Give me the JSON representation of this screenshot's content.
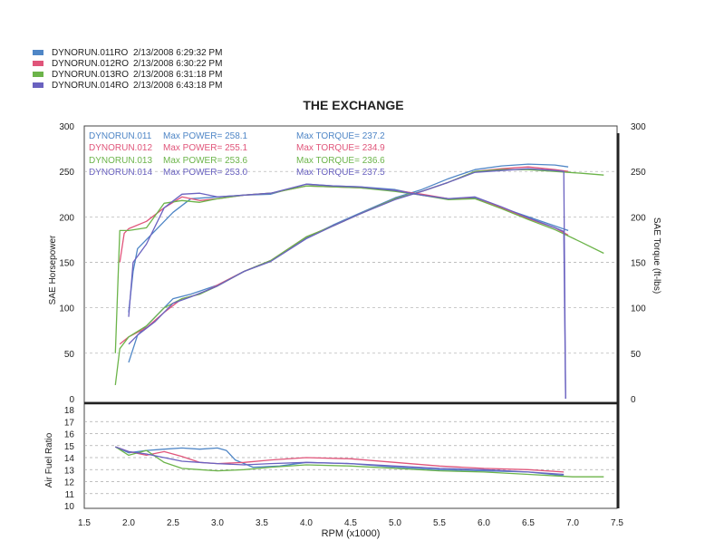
{
  "runs": [
    {
      "label": "DYNORUN.011RO",
      "timestamp": "2/13/2008 6:29:32 PM",
      "color": "#4f86c6"
    },
    {
      "label": "DYNORUN.012RO",
      "timestamp": "2/13/2008 6:30:22 PM",
      "color": "#e0557a"
    },
    {
      "label": "DYNORUN.013RO",
      "timestamp": "2/13/2008 6:31:18 PM",
      "color": "#6cb44a"
    },
    {
      "label": "DYNORUN.014RO",
      "timestamp": "2/13/2008 6:43:18 PM",
      "color": "#6a62c0"
    }
  ],
  "chart_data": [
    {
      "type": "line",
      "title": "THE EXCHANGE",
      "xlabel": "RPM (x1000)",
      "ylabel": "SAE Horsepower",
      "y2label": "SAE Torque (ft-lbs)",
      "xlim": [
        1.5,
        7.5
      ],
      "ylim": [
        0,
        300
      ],
      "y2lim": [
        0,
        300
      ],
      "x_ticks": [
        "1.5",
        "2.0",
        "2.5",
        "3.0",
        "3.5",
        "4.0",
        "4.5",
        "5.0",
        "5.5",
        "6.0",
        "6.5",
        "7.0",
        "7.5"
      ],
      "y_ticks": [
        "0",
        "50",
        "100",
        "150",
        "200",
        "250",
        "300"
      ],
      "y2_ticks": [
        "0",
        "50",
        "100",
        "150",
        "200",
        "250",
        "300"
      ],
      "grid": true,
      "annotations": [
        {
          "run": "DYNORUN.011",
          "max_power": "Max POWER= 258.1",
          "max_torque": "Max TORQUE= 237.2"
        },
        {
          "run": "DYNORUN.012",
          "max_power": "Max POWER= 255.1",
          "max_torque": "Max TORQUE= 234.9"
        },
        {
          "run": "DYNORUN.013",
          "max_power": "Max POWER= 253.6",
          "max_torque": "Max TORQUE= 236.6"
        },
        {
          "run": "DYNORUN.014",
          "max_power": "Max POWER= 253.0",
          "max_torque": "Max TORQUE= 237.5"
        }
      ],
      "series": [
        {
          "name": "DYNORUN.011RO",
          "kind": "horsepower",
          "color": "#4f86c6",
          "x": [
            2.0,
            2.1,
            2.3,
            2.5,
            2.7,
            3.0,
            3.3,
            3.6,
            4.0,
            4.3,
            4.6,
            5.0,
            5.3,
            5.6,
            5.9,
            6.2,
            6.5,
            6.8,
            6.95
          ],
          "y": [
            40,
            70,
            90,
            110,
            115,
            125,
            140,
            152,
            177,
            191,
            204,
            221,
            230,
            242,
            252,
            256,
            258,
            257,
            255
          ]
        },
        {
          "name": "DYNORUN.011RO",
          "kind": "torque",
          "color": "#4f86c6",
          "x": [
            2.0,
            2.05,
            2.1,
            2.3,
            2.5,
            2.7,
            3.0,
            3.3,
            3.6,
            4.0,
            4.3,
            4.6,
            5.0,
            5.3,
            5.6,
            5.9,
            6.2,
            6.5,
            6.8,
            6.95
          ],
          "y": [
            95,
            140,
            165,
            185,
            205,
            220,
            222,
            224,
            225,
            236,
            234,
            233,
            230,
            224,
            220,
            221,
            210,
            200,
            190,
            185
          ]
        },
        {
          "name": "DYNORUN.012RO",
          "kind": "horsepower",
          "color": "#e0557a",
          "x": [
            1.9,
            2.0,
            2.2,
            2.4,
            2.6,
            2.8,
            3.0,
            3.3,
            3.6,
            4.0,
            4.3,
            4.6,
            5.0,
            5.3,
            5.6,
            5.9,
            6.2,
            6.5,
            6.8,
            6.95
          ],
          "y": [
            60,
            68,
            78,
            95,
            110,
            115,
            125,
            140,
            152,
            178,
            190,
            203,
            220,
            228,
            238,
            250,
            253,
            255,
            252,
            250
          ]
        },
        {
          "name": "DYNORUN.012RO",
          "kind": "torque",
          "color": "#e0557a",
          "x": [
            1.9,
            1.95,
            2.0,
            2.2,
            2.4,
            2.6,
            2.8,
            3.0,
            3.3,
            3.6,
            4.0,
            4.3,
            4.6,
            5.0,
            5.3,
            5.6,
            5.9,
            6.2,
            6.5,
            6.8,
            6.95
          ],
          "y": [
            150,
            182,
            187,
            195,
            210,
            222,
            218,
            220,
            224,
            226,
            234,
            233,
            232,
            229,
            225,
            220,
            220,
            210,
            198,
            188,
            180
          ]
        },
        {
          "name": "DYNORUN.013RO",
          "kind": "horsepower",
          "color": "#6cb44a",
          "x": [
            1.85,
            1.9,
            2.0,
            2.2,
            2.4,
            2.6,
            2.8,
            3.0,
            3.3,
            3.6,
            4.0,
            4.3,
            4.6,
            5.0,
            5.3,
            5.6,
            5.9,
            6.2,
            6.5,
            6.8,
            7.1,
            7.35
          ],
          "y": [
            15,
            55,
            68,
            80,
            100,
            110,
            115,
            124,
            140,
            152,
            178,
            190,
            203,
            220,
            228,
            238,
            250,
            252,
            252,
            250,
            248,
            246
          ]
        },
        {
          "name": "DYNORUN.013RO",
          "kind": "torque",
          "color": "#6cb44a",
          "x": [
            1.85,
            1.9,
            2.0,
            2.2,
            2.4,
            2.6,
            2.8,
            3.0,
            3.3,
            3.6,
            4.0,
            4.3,
            4.6,
            5.0,
            5.3,
            5.6,
            5.9,
            6.2,
            6.5,
            6.8,
            7.1,
            7.35
          ],
          "y": [
            50,
            185,
            185,
            188,
            215,
            218,
            216,
            220,
            224,
            226,
            234,
            233,
            232,
            228,
            224,
            219,
            220,
            209,
            197,
            186,
            172,
            160
          ]
        },
        {
          "name": "DYNORUN.014RO",
          "kind": "horsepower",
          "color": "#6a62c0",
          "x": [
            2.0,
            2.1,
            2.3,
            2.5,
            2.7,
            3.0,
            3.3,
            3.6,
            4.0,
            4.3,
            4.6,
            5.0,
            5.3,
            5.6,
            5.9,
            6.2,
            6.5,
            6.8,
            6.9,
            6.92
          ],
          "y": [
            60,
            70,
            85,
            105,
            112,
            124,
            140,
            151,
            176,
            190,
            203,
            219,
            228,
            238,
            249,
            251,
            253,
            251,
            250,
            0
          ]
        },
        {
          "name": "DYNORUN.014RO",
          "kind": "torque",
          "color": "#6a62c0",
          "x": [
            2.0,
            2.05,
            2.2,
            2.4,
            2.6,
            2.8,
            3.0,
            3.3,
            3.6,
            4.0,
            4.3,
            4.6,
            5.0,
            5.3,
            5.6,
            5.9,
            6.2,
            6.5,
            6.8,
            6.9,
            6.92
          ],
          "y": [
            90,
            150,
            170,
            210,
            225,
            226,
            222,
            224,
            226,
            236,
            234,
            233,
            229,
            224,
            220,
            222,
            211,
            199,
            188,
            184,
            0
          ]
        }
      ]
    },
    {
      "type": "line",
      "xlabel": "RPM (x1000)",
      "ylabel": "Air Fuel Ratio",
      "xlim": [
        1.5,
        7.5
      ],
      "ylim": [
        10,
        18
      ],
      "y_ticks": [
        "18",
        "17",
        "16",
        "15",
        "14",
        "13",
        "12",
        "11",
        "10"
      ],
      "grid": true,
      "series": [
        {
          "name": "DYNORUN.011RO",
          "color": "#4f86c6",
          "x": [
            1.85,
            2.0,
            2.2,
            2.4,
            2.6,
            2.8,
            3.0,
            3.1,
            3.2,
            3.4,
            3.7,
            4.0,
            4.5,
            5.0,
            5.5,
            6.0,
            6.5,
            6.9
          ],
          "y": [
            14.9,
            14.4,
            14.6,
            14.7,
            14.8,
            14.7,
            14.8,
            14.6,
            13.8,
            13.2,
            13.3,
            13.6,
            13.5,
            13.2,
            13.0,
            12.9,
            12.8,
            12.5
          ]
        },
        {
          "name": "DYNORUN.012RO",
          "color": "#e0557a",
          "x": [
            1.85,
            2.0,
            2.2,
            2.4,
            2.6,
            2.8,
            3.0,
            3.3,
            3.6,
            4.0,
            4.5,
            5.0,
            5.5,
            6.0,
            6.5,
            6.9
          ],
          "y": [
            14.9,
            14.5,
            14.2,
            14.5,
            14.1,
            13.6,
            13.5,
            13.6,
            13.8,
            14.0,
            13.9,
            13.6,
            13.3,
            13.1,
            13.0,
            12.8
          ]
        },
        {
          "name": "DYNORUN.013RO",
          "color": "#6cb44a",
          "x": [
            1.85,
            2.0,
            2.2,
            2.4,
            2.6,
            2.8,
            3.0,
            3.3,
            3.6,
            4.0,
            4.5,
            5.0,
            5.5,
            6.0,
            6.5,
            7.0,
            7.35
          ],
          "y": [
            14.9,
            14.2,
            14.6,
            13.6,
            13.1,
            13.0,
            12.9,
            13.0,
            13.2,
            13.4,
            13.3,
            13.1,
            12.9,
            12.8,
            12.6,
            12.4,
            12.4
          ]
        },
        {
          "name": "DYNORUN.014RO",
          "color": "#6a62c0",
          "x": [
            1.85,
            2.0,
            2.2,
            2.4,
            2.6,
            2.8,
            3.0,
            3.3,
            3.6,
            4.0,
            4.5,
            5.0,
            5.5,
            6.0,
            6.5,
            6.9
          ],
          "y": [
            14.9,
            14.5,
            14.3,
            14.0,
            13.7,
            13.6,
            13.5,
            13.4,
            13.5,
            13.6,
            13.5,
            13.3,
            13.1,
            13.0,
            12.8,
            12.6
          ]
        }
      ]
    }
  ]
}
